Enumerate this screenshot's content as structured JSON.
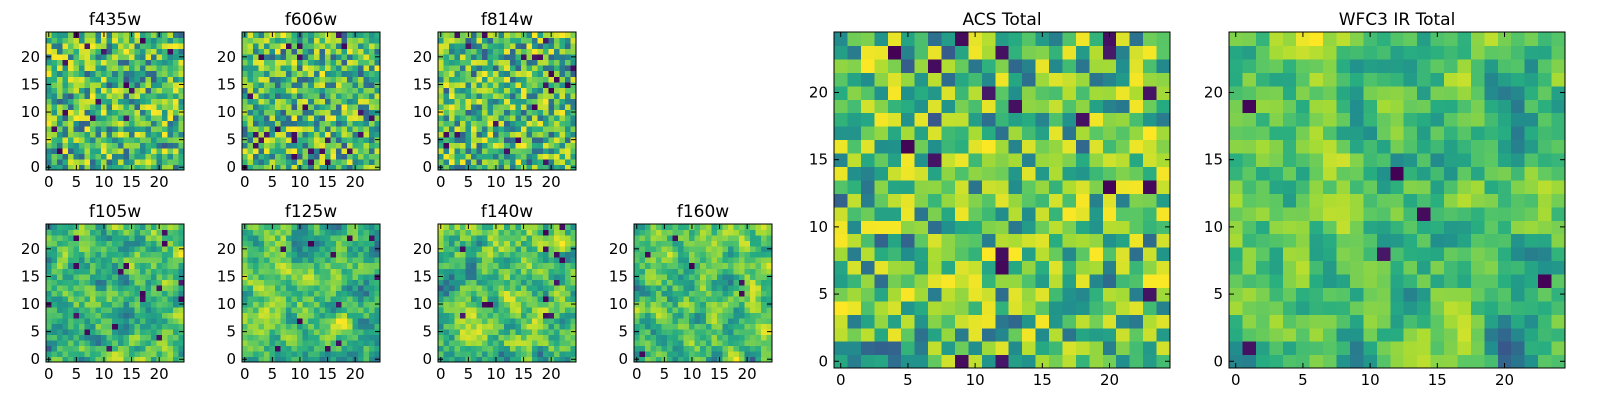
{
  "chart_data": [
    {
      "type": "heatmap",
      "title": "f435w",
      "xticks": [
        "0",
        "5",
        "10",
        "15",
        "20"
      ],
      "yticks": [
        "0",
        "5",
        "10",
        "15",
        "20"
      ],
      "xlim": [
        -0.5,
        24.5
      ],
      "ylim": [
        -0.5,
        24.5
      ],
      "grid_size": 25,
      "colormap": "viridis",
      "texture": "noise",
      "seed": 11
    },
    {
      "type": "heatmap",
      "title": "f606w",
      "xticks": [
        "0",
        "5",
        "10",
        "15",
        "20"
      ],
      "yticks": [
        "0",
        "5",
        "10",
        "15",
        "20"
      ],
      "xlim": [
        -0.5,
        24.5
      ],
      "ylim": [
        -0.5,
        24.5
      ],
      "grid_size": 25,
      "colormap": "viridis",
      "texture": "noise",
      "seed": 23
    },
    {
      "type": "heatmap",
      "title": "f814w",
      "xticks": [
        "0",
        "5",
        "10",
        "15",
        "20"
      ],
      "yticks": [
        "0",
        "5",
        "10",
        "15",
        "20"
      ],
      "xlim": [
        -0.5,
        24.5
      ],
      "ylim": [
        -0.5,
        24.5
      ],
      "grid_size": 25,
      "colormap": "viridis",
      "texture": "noise",
      "seed": 37
    },
    {
      "type": "heatmap",
      "title": "f105w",
      "xticks": [
        "0",
        "5",
        "10",
        "15",
        "20"
      ],
      "yticks": [
        "0",
        "5",
        "10",
        "15",
        "20"
      ],
      "xlim": [
        -0.5,
        24.5
      ],
      "ylim": [
        -0.5,
        24.5
      ],
      "grid_size": 25,
      "colormap": "viridis",
      "texture": "smooth",
      "seed": 41
    },
    {
      "type": "heatmap",
      "title": "f125w",
      "xticks": [
        "0",
        "5",
        "10",
        "15",
        "20"
      ],
      "yticks": [
        "0",
        "5",
        "10",
        "15",
        "20"
      ],
      "xlim": [
        -0.5,
        24.5
      ],
      "ylim": [
        -0.5,
        24.5
      ],
      "grid_size": 25,
      "colormap": "viridis",
      "texture": "smooth",
      "seed": 53
    },
    {
      "type": "heatmap",
      "title": "f140w",
      "xticks": [
        "0",
        "5",
        "10",
        "15",
        "20"
      ],
      "yticks": [
        "0",
        "5",
        "10",
        "15",
        "20"
      ],
      "xlim": [
        -0.5,
        24.5
      ],
      "ylim": [
        -0.5,
        24.5
      ],
      "grid_size": 25,
      "colormap": "viridis",
      "texture": "smooth",
      "seed": 67
    },
    {
      "type": "heatmap",
      "title": "f160w",
      "xticks": [
        "0",
        "5",
        "10",
        "15",
        "20"
      ],
      "yticks": [
        "0",
        "5",
        "10",
        "15",
        "20"
      ],
      "xlim": [
        -0.5,
        24.5
      ],
      "ylim": [
        -0.5,
        24.5
      ],
      "grid_size": 25,
      "colormap": "viridis",
      "texture": "smooth",
      "seed": 79
    },
    {
      "type": "heatmap",
      "title": "ACS Total",
      "xticks": [
        "0",
        "5",
        "10",
        "15",
        "20"
      ],
      "yticks": [
        "0",
        "5",
        "10",
        "15",
        "20"
      ],
      "xlim": [
        -0.5,
        24.5
      ],
      "ylim": [
        -0.5,
        24.5
      ],
      "grid_size": 25,
      "colormap": "viridis",
      "texture": "noise-bright",
      "seed": 97
    },
    {
      "type": "heatmap",
      "title": "WFC3 IR Total",
      "xticks": [
        "0",
        "5",
        "10",
        "15",
        "20"
      ],
      "yticks": [
        "0",
        "5",
        "10",
        "15",
        "20"
      ],
      "xlim": [
        -0.5,
        24.5
      ],
      "ylim": [
        -0.5,
        24.5
      ],
      "grid_size": 25,
      "colormap": "viridis",
      "texture": "smooth",
      "seed": 131
    }
  ]
}
